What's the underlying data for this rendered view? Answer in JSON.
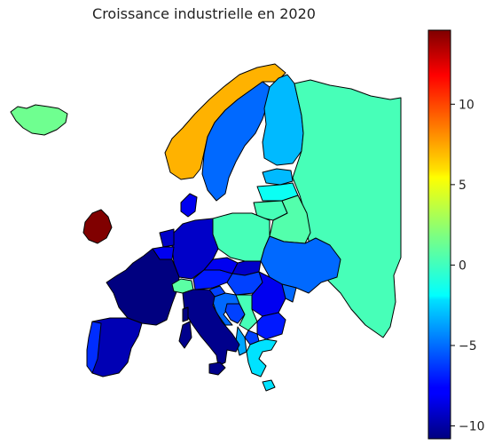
{
  "chart_data": {
    "type": "choropleth",
    "title": "Croissance industrielle en 2020",
    "colormap": "jet",
    "value_range": [
      -10.8,
      14.6
    ],
    "colorbar": {
      "ticks": [
        10,
        5,
        0,
        -5,
        -10
      ],
      "tick_labels": [
        "10",
        "5",
        "0",
        "−5",
        "−10"
      ]
    },
    "regions": [
      {
        "name": "Iceland",
        "value": 1.5
      },
      {
        "name": "Ireland",
        "value": 14.6
      },
      {
        "name": "Norway",
        "value": 7.0
      },
      {
        "name": "Sweden",
        "value": -5.0
      },
      {
        "name": "Finland",
        "value": -3.0
      },
      {
        "name": "Russia",
        "value": 0.5
      },
      {
        "name": "Estonia",
        "value": -3.0
      },
      {
        "name": "Latvia",
        "value": -1.0
      },
      {
        "name": "Lithuania",
        "value": 0.5
      },
      {
        "name": "Belarus",
        "value": 0.8
      },
      {
        "name": "Poland",
        "value": 0.5
      },
      {
        "name": "Ukraine",
        "value": -5.0
      },
      {
        "name": "Germany",
        "value": -9.0
      },
      {
        "name": "Denmark",
        "value": -8.0
      },
      {
        "name": "Netherlands",
        "value": -9.0
      },
      {
        "name": "Belgium",
        "value": -8.0
      },
      {
        "name": "France",
        "value": -10.8
      },
      {
        "name": "Switzerland",
        "value": 1.0
      },
      {
        "name": "Austria",
        "value": -7.0
      },
      {
        "name": "Czechia",
        "value": -8.0
      },
      {
        "name": "Slovakia",
        "value": -9.0
      },
      {
        "name": "Hungary",
        "value": -6.0
      },
      {
        "name": "Romania",
        "value": -8.0
      },
      {
        "name": "Moldova",
        "value": -5.0
      },
      {
        "name": "Italy",
        "value": -10.5
      },
      {
        "name": "Slovenia",
        "value": -6.0
      },
      {
        "name": "Croatia",
        "value": -5.0
      },
      {
        "name": "Bosnia and Herzegovina",
        "value": -6.0
      },
      {
        "name": "Serbia",
        "value": 0.5
      },
      {
        "name": "Bulgaria",
        "value": -7.0
      },
      {
        "name": "Macedonia",
        "value": -6.0
      },
      {
        "name": "Albania",
        "value": -3.5
      },
      {
        "name": "Greece",
        "value": -2.0
      },
      {
        "name": "Spain",
        "value": -9.5
      },
      {
        "name": "Portugal",
        "value": -6.5
      },
      {
        "name": "Sardinia",
        "value": -10.5
      },
      {
        "name": "Sicily",
        "value": -10.5
      },
      {
        "name": "Corsica",
        "value": -10.8
      },
      {
        "name": "Cyprus",
        "value": -2.0
      }
    ]
  }
}
